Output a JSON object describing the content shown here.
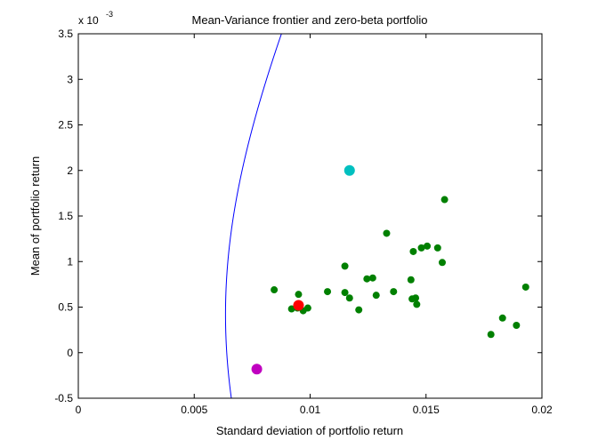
{
  "chart_data": {
    "type": "scatter",
    "title": "Mean-Variance frontier and zero-beta portfolio",
    "xlabel": "Standard deviation of portfolio return",
    "ylabel": "Mean of portfolio return",
    "y_exponent_label": "x 10",
    "y_exponent_power": "-3",
    "xlim": [
      0,
      0.02
    ],
    "ylim": [
      -0.0005,
      0.0035
    ],
    "x_ticks": [
      0,
      0.005,
      0.01,
      0.015,
      0.02
    ],
    "x_tick_labels": [
      "0",
      "0.005",
      "0.01",
      "0.015",
      "0.02"
    ],
    "y_ticks": [
      -0.0005,
      0,
      0.0005,
      0.001,
      0.0015,
      0.002,
      0.0025,
      0.003,
      0.0035
    ],
    "y_tick_labels": [
      "-0.5",
      "0",
      "0.5",
      "1",
      "1.5",
      "2",
      "2.5",
      "3",
      "3.5"
    ],
    "grid": false,
    "frontier": {
      "color": "#0000ff",
      "min_variance_sd": 0.00635,
      "min_variance_mean": 0.00042,
      "slope_per_sd": 0.00051,
      "shape": "hyperbola"
    },
    "assets": {
      "color": "#008000",
      "points": [
        [
          0.00845,
          0.00069
        ],
        [
          0.0092,
          0.00048
        ],
        [
          0.00945,
          0.00049
        ],
        [
          0.0095,
          0.00064
        ],
        [
          0.0097,
          0.00046
        ],
        [
          0.0099,
          0.00049
        ],
        [
          0.01075,
          0.00067
        ],
        [
          0.0115,
          0.00095
        ],
        [
          0.0115,
          0.00066
        ],
        [
          0.0117,
          0.0006
        ],
        [
          0.0121,
          0.00047
        ],
        [
          0.01245,
          0.00081
        ],
        [
          0.0127,
          0.00082
        ],
        [
          0.01285,
          0.00063
        ],
        [
          0.0133,
          0.00131
        ],
        [
          0.0136,
          0.00067
        ],
        [
          0.01435,
          0.0008
        ],
        [
          0.0144,
          0.00059
        ],
        [
          0.01445,
          0.00111
        ],
        [
          0.01455,
          0.0006
        ],
        [
          0.0146,
          0.00053
        ],
        [
          0.0148,
          0.00115
        ],
        [
          0.01505,
          0.00117
        ],
        [
          0.0155,
          0.00115
        ],
        [
          0.0157,
          0.00099
        ],
        [
          0.0158,
          0.00168
        ],
        [
          0.0178,
          0.0002
        ],
        [
          0.0183,
          0.00038
        ],
        [
          0.0189,
          0.0003
        ],
        [
          0.0193,
          0.00072
        ]
      ]
    },
    "highlight_points": [
      {
        "x": 0.0117,
        "y": 0.002,
        "color": "#00c0c0"
      },
      {
        "x": 0.0095,
        "y": 0.00052,
        "color": "#ff0000"
      },
      {
        "x": 0.0077,
        "y": -0.00018,
        "color": "#c000c0"
      }
    ]
  }
}
